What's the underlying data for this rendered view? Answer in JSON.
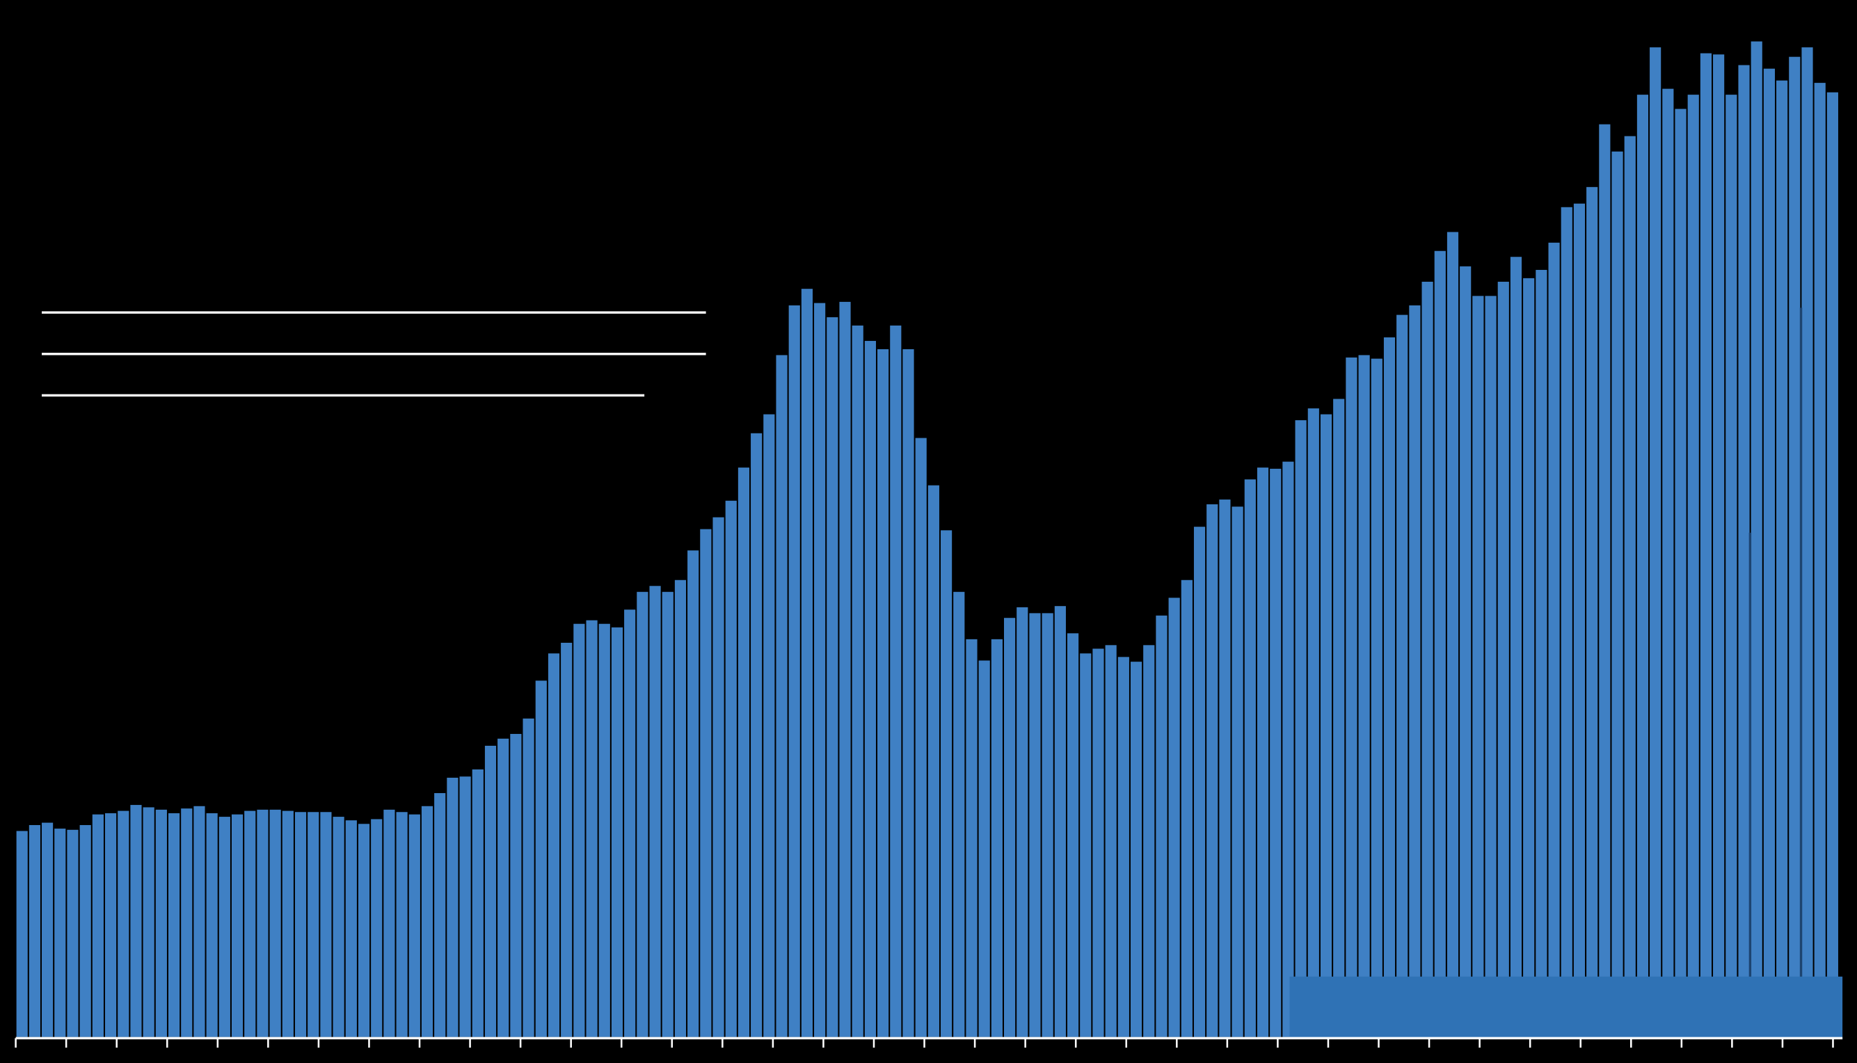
{
  "chart_data": {
    "type": "bar",
    "color": "#3f80c4",
    "ylim": [
      0,
      876
    ],
    "values": [
      174,
      179,
      181,
      176,
      175,
      179,
      188,
      189,
      191,
      196,
      194,
      192,
      189,
      193,
      195,
      189,
      186,
      188,
      191,
      192,
      192,
      191,
      190,
      190,
      190,
      186,
      183,
      180,
      184,
      192,
      190,
      188,
      195,
      206,
      219,
      220,
      226,
      246,
      252,
      256,
      269,
      301,
      324,
      333,
      349,
      352,
      349,
      346,
      361,
      376,
      381,
      376,
      386,
      411,
      429,
      439,
      453,
      481,
      510,
      526,
      576,
      618,
      632,
      620,
      608,
      621,
      601,
      588,
      581,
      601,
      581,
      506,
      466,
      428,
      376,
      336,
      318,
      336,
      354,
      363,
      358,
      358,
      364,
      341,
      324,
      328,
      331,
      321,
      317,
      331,
      356,
      371,
      386,
      431,
      450,
      454,
      448,
      471,
      481,
      480,
      486,
      521,
      531,
      526,
      539,
      574,
      576,
      573,
      591,
      610,
      618,
      638,
      664,
      680,
      651,
      626,
      626,
      638,
      659,
      641,
      648,
      671,
      701,
      704,
      718,
      771,
      748,
      761,
      796,
      836,
      801,
      784,
      796,
      831,
      830,
      796,
      821,
      841,
      818,
      808,
      828,
      836,
      806,
      798
    ]
  }
}
